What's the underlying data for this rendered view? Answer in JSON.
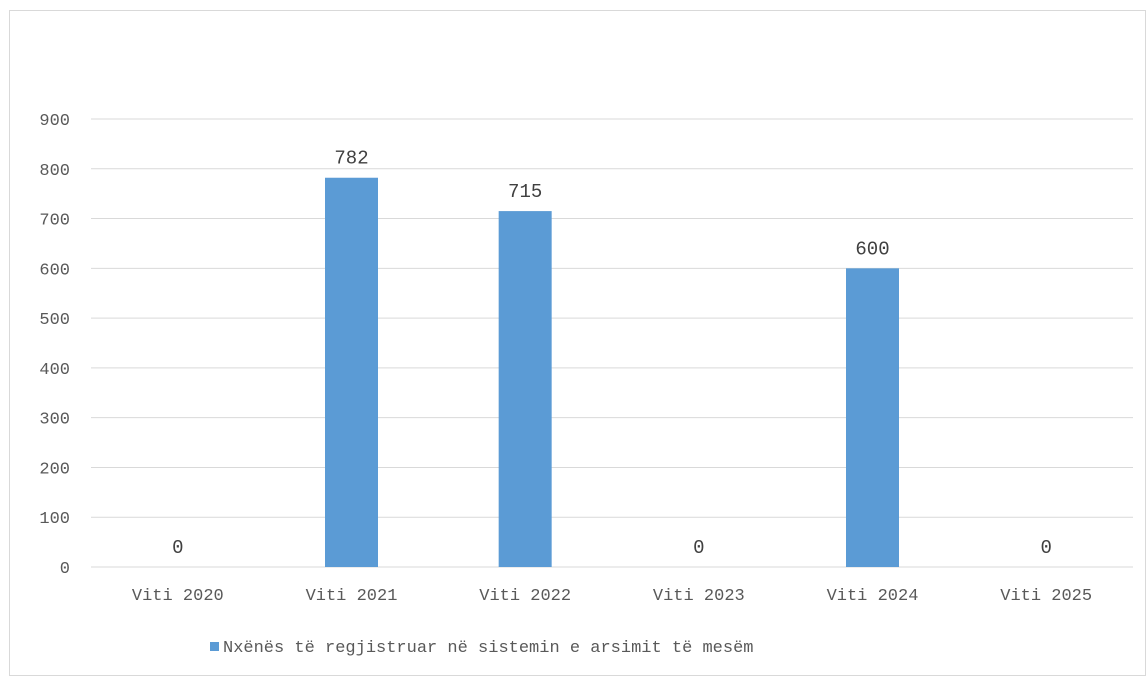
{
  "chart_data": {
    "type": "bar",
    "categories": [
      "Viti 2020",
      "Viti 2021",
      "Viti 2022",
      "Viti 2023",
      "Viti 2024",
      "Viti 2025"
    ],
    "series": [
      {
        "name": "Nxënës të regjistruar në sistemin e arsimit të mesëm",
        "values": [
          0,
          782,
          715,
          0,
          600,
          0
        ],
        "color": "#5b9bd5"
      }
    ],
    "ylim": [
      0,
      900
    ],
    "yticks": [
      0,
      100,
      200,
      300,
      400,
      500,
      600,
      700,
      800,
      900
    ],
    "grid": true,
    "legend_position": "bottom",
    "data_labels": true
  }
}
